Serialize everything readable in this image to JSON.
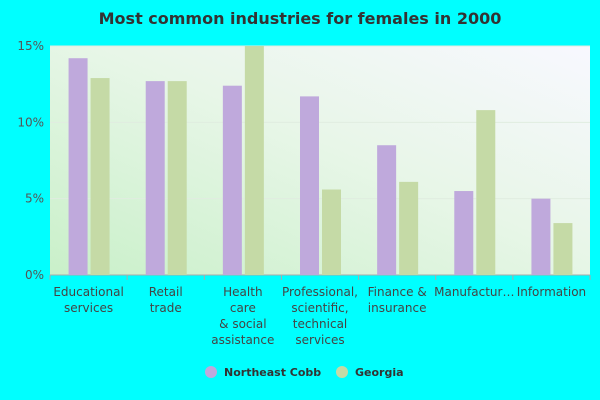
{
  "chart_data": {
    "type": "bar",
    "title": "Most common industries for females in 2000",
    "categories": [
      "Educational\nservices",
      "Retail\ntrade",
      "Health\ncare\n& social\nassistance",
      "Professional,\nscientific,\ntechnical\nservices",
      "Finance &\ninsurance",
      "Manufactur…",
      "Information"
    ],
    "series": [
      {
        "name": "Northeast Cobb",
        "color": "#bfa9dc",
        "values": [
          14.2,
          12.7,
          12.4,
          11.7,
          8.5,
          5.5,
          5.0
        ]
      },
      {
        "name": "Georgia",
        "color": "#c5daa6",
        "values": [
          12.9,
          12.7,
          15.0,
          5.6,
          6.1,
          10.8,
          3.4
        ]
      }
    ],
    "ylim": [
      0,
      15
    ],
    "yticks": [
      {
        "value": 0,
        "label": "0%"
      },
      {
        "value": 5,
        "label": "5%"
      },
      {
        "value": 10,
        "label": "10%"
      },
      {
        "value": 15,
        "label": "15%"
      }
    ],
    "grid": true,
    "legend": "bottom"
  }
}
